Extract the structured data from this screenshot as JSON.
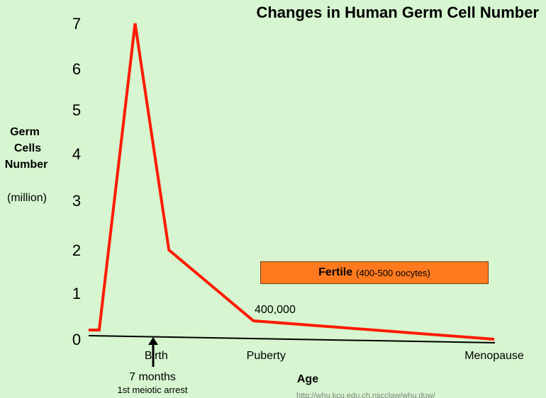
{
  "chart_data": {
    "type": "line",
    "title": "Changes in Human Germ Cell Number",
    "ylabel_lines": [
      "Germ",
      "Cells",
      "Number"
    ],
    "ylabel_unit": "(million)",
    "xlabel": "Age",
    "yticks": [
      0,
      1,
      2,
      3,
      4,
      5,
      6,
      7
    ],
    "series": [
      {
        "name": "Germ cells",
        "color": "#ff1a00",
        "x": [
          0,
          0.25,
          1.1,
          1.9,
          3.9,
          9.6
        ],
        "y": [
          0.2,
          0.2,
          7.0,
          2.0,
          0.4,
          0.0
        ]
      }
    ],
    "x_labels": [
      {
        "label": "Birth",
        "x": 1.6
      },
      {
        "label": "Puberty",
        "x": 4.2
      },
      {
        "label": "Menopause",
        "x": 9.6
      }
    ],
    "annotations": [
      {
        "text": "400,000",
        "x": 4.7,
        "y": 0.7
      }
    ],
    "arrow": {
      "x": 1.55,
      "label_lines": [
        "7 months",
        "1st meiotic arrest"
      ]
    },
    "fertile_band": {
      "label": "Fertile",
      "sublabel": "(400-500 oocytes)",
      "color": "#ff7a1f"
    }
  },
  "source_url": "http://whu.kcu.edu.ch.nscclaw/whu.duw/"
}
